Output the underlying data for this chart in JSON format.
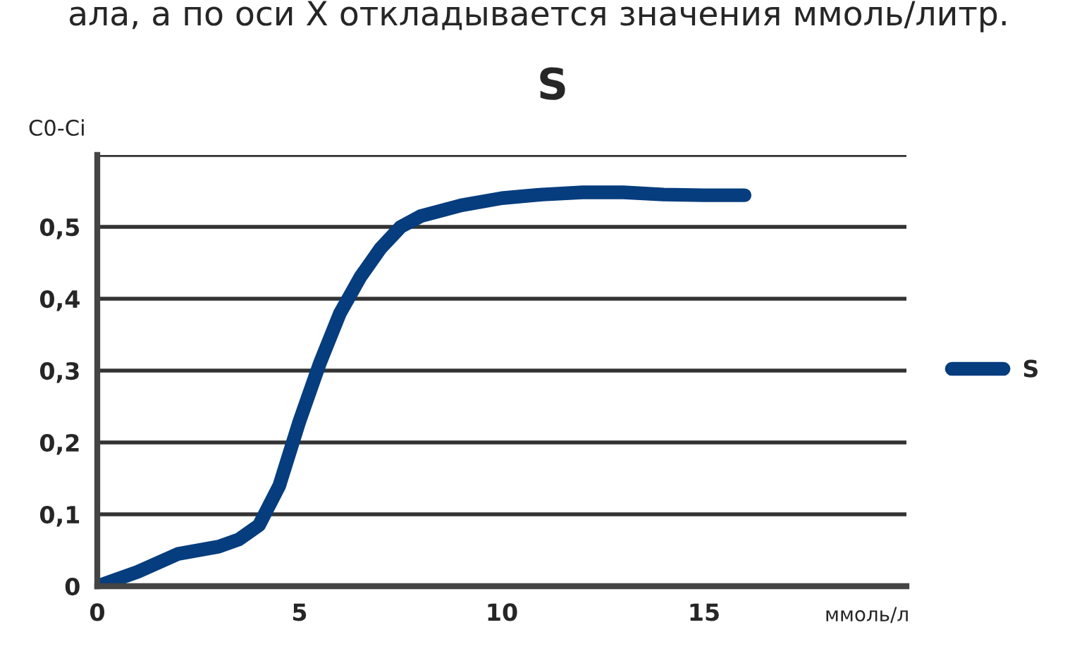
{
  "chart_data": {
    "type": "line",
    "title": "S",
    "ylabel": "C0-Ci",
    "xlabel": "ммоль/л",
    "annotations": [
      "ала, а по оси X откладывается значения ммоль/литр."
    ],
    "series": [
      {
        "name": "S",
        "color": "#053d7e",
        "x": [
          0,
          1,
          2,
          3,
          3.5,
          4,
          4.5,
          5,
          5.5,
          6,
          6.5,
          7,
          7.5,
          8,
          9,
          10,
          11,
          12,
          13,
          14,
          15,
          16
        ],
        "values": [
          0,
          0.02,
          0.045,
          0.055,
          0.065,
          0.085,
          0.14,
          0.23,
          0.31,
          0.38,
          0.43,
          0.47,
          0.5,
          0.515,
          0.53,
          0.54,
          0.545,
          0.548,
          0.548,
          0.545,
          0.544,
          0.544
        ]
      }
    ],
    "xlim": [
      0,
      20
    ],
    "xticks": [
      0,
      5,
      10,
      15
    ],
    "ylim": [
      0,
      0.6
    ],
    "yticks": [
      {
        "value": 0,
        "label": "0"
      },
      {
        "value": 0.1,
        "label": "0,1"
      },
      {
        "value": 0.2,
        "label": "0,2"
      },
      {
        "value": 0.3,
        "label": "0,3"
      },
      {
        "value": 0.4,
        "label": "0,4"
      },
      {
        "value": 0.5,
        "label": "0,5"
      },
      {
        "value": 0.6,
        "label": null
      }
    ],
    "grid": "y",
    "legend": "right",
    "marker": "none",
    "line_style": "solid"
  }
}
